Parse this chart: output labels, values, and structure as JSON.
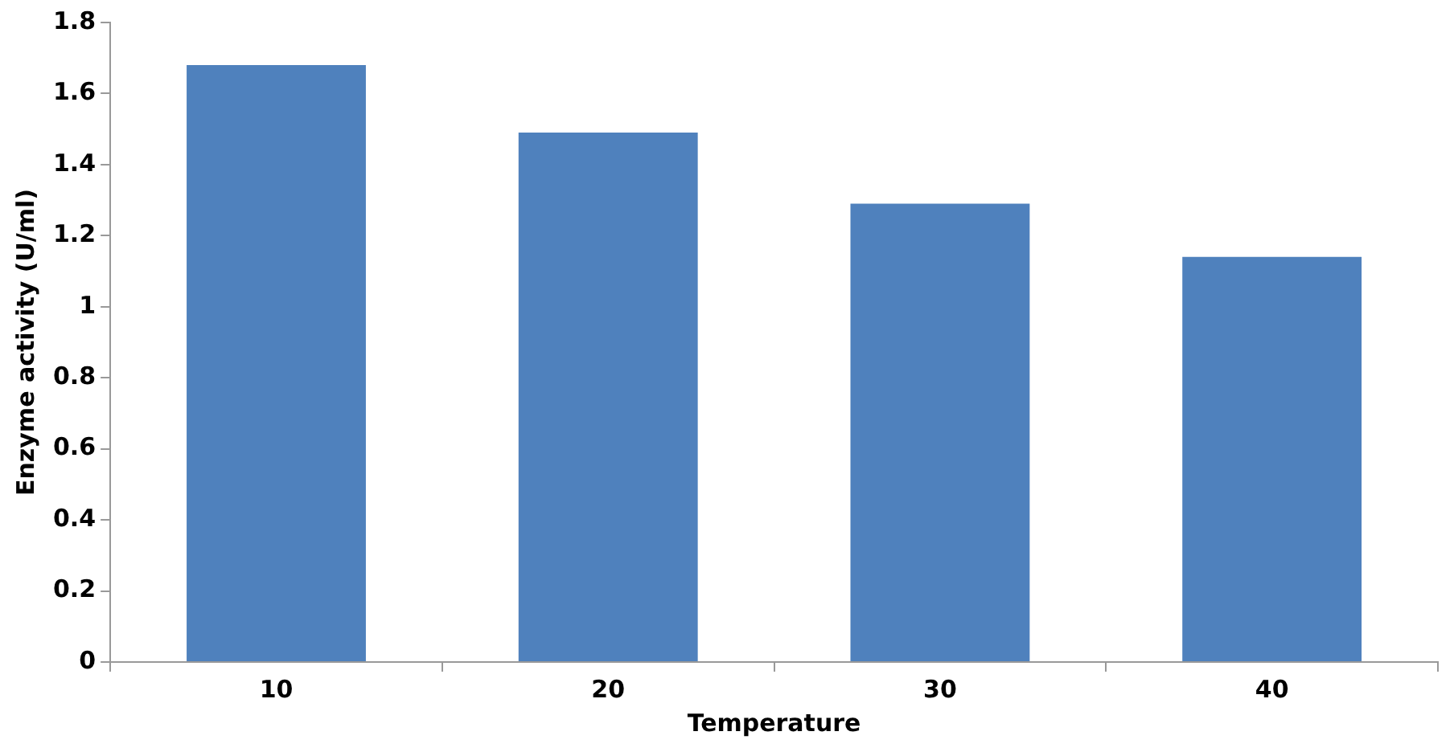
{
  "chart_data": {
    "type": "bar",
    "xlabel": "Temperature",
    "ylabel": "Enzyme activity (U/ml)",
    "categories": [
      "10",
      "20",
      "30",
      "40"
    ],
    "values": [
      1.68,
      1.49,
      1.29,
      1.14
    ],
    "color": "#4f81bd",
    "ylim": [
      0,
      1.8
    ],
    "yticks": [
      0,
      0.2,
      0.4,
      0.6,
      0.8,
      1,
      1.2,
      1.4,
      1.6,
      1.8
    ],
    "grid": false,
    "legend": false
  }
}
